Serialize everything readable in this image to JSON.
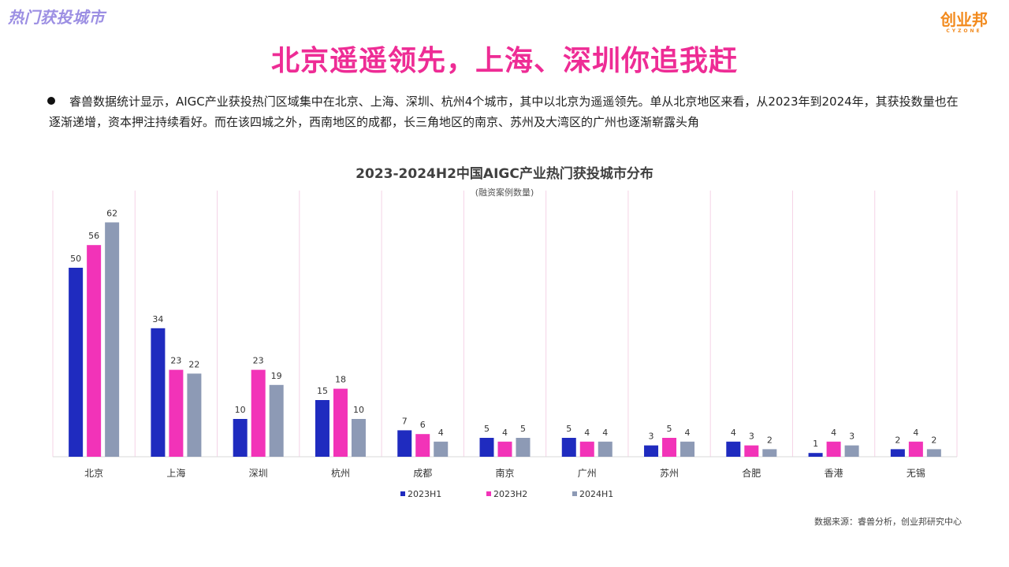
{
  "header": {
    "section_tag": "热门获投城市",
    "brand_name": "创业邦",
    "brand_sub": "CYZONE"
  },
  "headline": "北京遥遥领先，上海、深圳你追我赶",
  "summary": "睿兽数据统计显示，AIGC产业获投热门区域集中在北京、上海、深圳、杭州4个城市，其中以北京为遥遥领先。单从北京地区来看，从2023年到2024年，其获投数量也在逐渐递增，资本押注持续看好。而在该四城之外，西南地区的成都，长三角地区的南京、苏州及大湾区的广州也逐渐崭露头角",
  "footer": {
    "source": "数据来源：睿兽分析，创业邦研究中心"
  },
  "chart_data": {
    "type": "bar",
    "title": "2023-2024H2中国AIGC产业热门获投城市分布",
    "subtitle": "(融资案例数量)",
    "categories": [
      "北京",
      "上海",
      "深圳",
      "杭州",
      "成都",
      "南京",
      "广州",
      "苏州",
      "合肥",
      "香港",
      "无锡"
    ],
    "series": [
      {
        "name": "2023H1",
        "color": "#1f2bbf",
        "values": [
          50,
          34,
          10,
          15,
          7,
          5,
          5,
          3,
          4,
          1,
          2
        ]
      },
      {
        "name": "2023H2",
        "color": "#f233b8",
        "values": [
          56,
          23,
          23,
          18,
          6,
          4,
          4,
          5,
          3,
          4,
          4
        ]
      },
      {
        "name": "2024H1",
        "color": "#8d9ab5",
        "values": [
          62,
          22,
          19,
          10,
          4,
          5,
          4,
          4,
          2,
          3,
          2
        ]
      }
    ],
    "ylim": [
      0,
      65
    ],
    "legend_position": "bottom",
    "grid": "vertical category separators"
  }
}
